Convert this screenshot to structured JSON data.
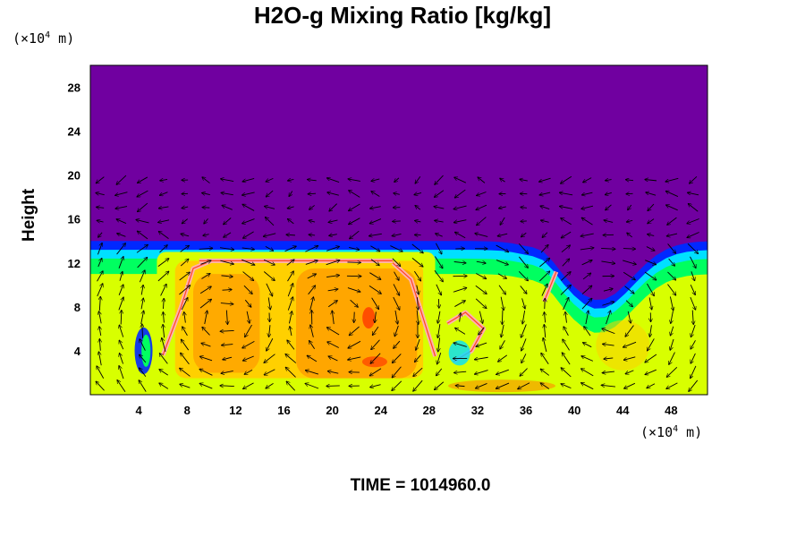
{
  "chart_data": {
    "type": "heatmap",
    "title": "H2O-g Mixing Ratio [kg/kg]",
    "ylabel": "Height",
    "x_unit_prefix": "(×10",
    "x_unit_exp": "4",
    "x_unit_suffix": " m)",
    "y_unit_prefix": "(×10",
    "y_unit_exp": "4",
    "y_unit_suffix": " m)",
    "xlim": [
      0,
      51
    ],
    "ylim": [
      0,
      30
    ],
    "x_ticks": [
      4,
      8,
      12,
      16,
      20,
      24,
      28,
      32,
      36,
      40,
      44,
      48
    ],
    "y_ticks": [
      4,
      8,
      12,
      16,
      20,
      24,
      28
    ],
    "background_color": "#7000a0",
    "moist_layer_top": 14,
    "arrow_layer_top": 20,
    "grid": false,
    "colorscale": [
      "#7000a0",
      "#0028ff",
      "#00e0ff",
      "#00ff60",
      "#d8ff00",
      "#ffd000",
      "#ff8a00",
      "#ff2a00",
      "#ffb0b0"
    ]
  },
  "footer": {
    "time_text": "TIME = 1014960.0"
  }
}
